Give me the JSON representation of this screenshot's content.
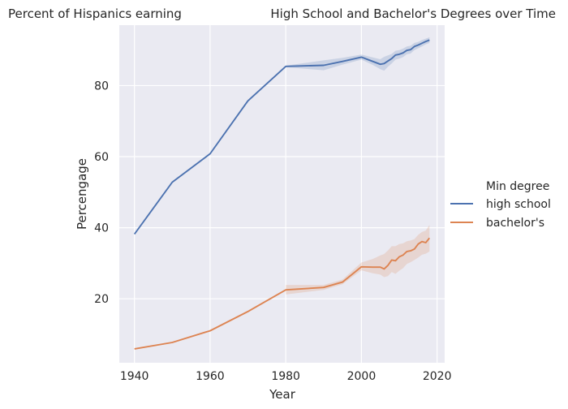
{
  "chart_data": {
    "type": "line",
    "title_left": "Percent of Hispanics earning",
    "title_right": "High School and Bachelor's Degrees over Time",
    "xlabel": "Year",
    "ylabel": "Percengage",
    "xlim": [
      1936,
      2022
    ],
    "ylim": [
      2,
      97
    ],
    "xticks": [
      1940,
      1960,
      1980,
      2000,
      2020
    ],
    "yticks": [
      20,
      40,
      60,
      80
    ],
    "grid": true,
    "background": "#eaeaf2",
    "legend": {
      "title": "Min degree",
      "placement": "right"
    },
    "series": [
      {
        "name": "high school",
        "color": "#4c72b0",
        "points": [
          [
            1940,
            38.2
          ],
          [
            1950,
            52.8
          ],
          [
            1960,
            60.8
          ],
          [
            1970,
            75.7
          ],
          [
            1980,
            85.4
          ],
          [
            1990,
            85.7
          ],
          [
            1995,
            86.8
          ],
          [
            2000,
            88.0
          ],
          [
            2003,
            86.8
          ],
          [
            2005,
            86.0
          ],
          [
            2006,
            86.2
          ],
          [
            2007,
            86.9
          ],
          [
            2008,
            87.6
          ],
          [
            2009,
            88.6
          ],
          [
            2010,
            88.8
          ],
          [
            2011,
            89.2
          ],
          [
            2012,
            89.9
          ],
          [
            2013,
            90.1
          ],
          [
            2014,
            91.0
          ],
          [
            2015,
            91.4
          ],
          [
            2016,
            91.9
          ],
          [
            2017,
            92.4
          ],
          [
            2018,
            92.8
          ]
        ],
        "band": [
          [
            1980,
            85.2,
            85.6
          ],
          [
            1990,
            84.3,
            87.1
          ],
          [
            1995,
            85.9,
            87.8
          ],
          [
            2000,
            87.3,
            88.7
          ],
          [
            2003,
            85.8,
            87.9
          ],
          [
            2005,
            84.6,
            87.4
          ],
          [
            2006,
            84.2,
            88.1
          ],
          [
            2007,
            85.3,
            88.5
          ],
          [
            2008,
            86.2,
            88.9
          ],
          [
            2009,
            87.3,
            89.8
          ],
          [
            2010,
            87.6,
            90.0
          ],
          [
            2011,
            88.0,
            90.4
          ],
          [
            2012,
            88.8,
            91.0
          ],
          [
            2013,
            89.0,
            91.2
          ],
          [
            2014,
            90.0,
            92.0
          ],
          [
            2015,
            90.5,
            92.3
          ],
          [
            2016,
            91.0,
            92.8
          ],
          [
            2017,
            91.6,
            93.2
          ],
          [
            2018,
            92.0,
            93.6
          ]
        ]
      },
      {
        "name": "bachelor's",
        "color": "#dd8452",
        "points": [
          [
            1940,
            5.9
          ],
          [
            1950,
            7.7
          ],
          [
            1960,
            11.0
          ],
          [
            1970,
            16.4
          ],
          [
            1980,
            22.5
          ],
          [
            1990,
            23.2
          ],
          [
            1995,
            24.7
          ],
          [
            2000,
            29.0
          ],
          [
            2003,
            28.9
          ],
          [
            2005,
            28.9
          ],
          [
            2006,
            28.4
          ],
          [
            2007,
            29.4
          ],
          [
            2008,
            30.9
          ],
          [
            2009,
            30.7
          ],
          [
            2010,
            31.8
          ],
          [
            2011,
            32.3
          ],
          [
            2012,
            33.3
          ],
          [
            2013,
            33.5
          ],
          [
            2014,
            34.0
          ],
          [
            2015,
            35.4
          ],
          [
            2016,
            36.1
          ],
          [
            2017,
            35.8
          ],
          [
            2018,
            37.1
          ]
        ],
        "band": [
          [
            1980,
            21.2,
            23.9
          ],
          [
            1990,
            22.5,
            23.9
          ],
          [
            1995,
            24.1,
            25.4
          ],
          [
            2000,
            28.0,
            30.2
          ],
          [
            2003,
            27.2,
            31.2
          ],
          [
            2005,
            26.8,
            32.2
          ],
          [
            2006,
            26.1,
            32.6
          ],
          [
            2007,
            26.4,
            33.6
          ],
          [
            2008,
            27.5,
            34.8
          ],
          [
            2009,
            27.0,
            34.8
          ],
          [
            2010,
            27.9,
            35.4
          ],
          [
            2011,
            28.6,
            35.6
          ],
          [
            2012,
            29.8,
            36.2
          ],
          [
            2013,
            30.3,
            36.4
          ],
          [
            2014,
            30.9,
            36.8
          ],
          [
            2015,
            31.6,
            38.0
          ],
          [
            2016,
            32.4,
            38.8
          ],
          [
            2017,
            32.7,
            39.2
          ],
          [
            2018,
            33.3,
            40.8
          ]
        ]
      }
    ]
  }
}
